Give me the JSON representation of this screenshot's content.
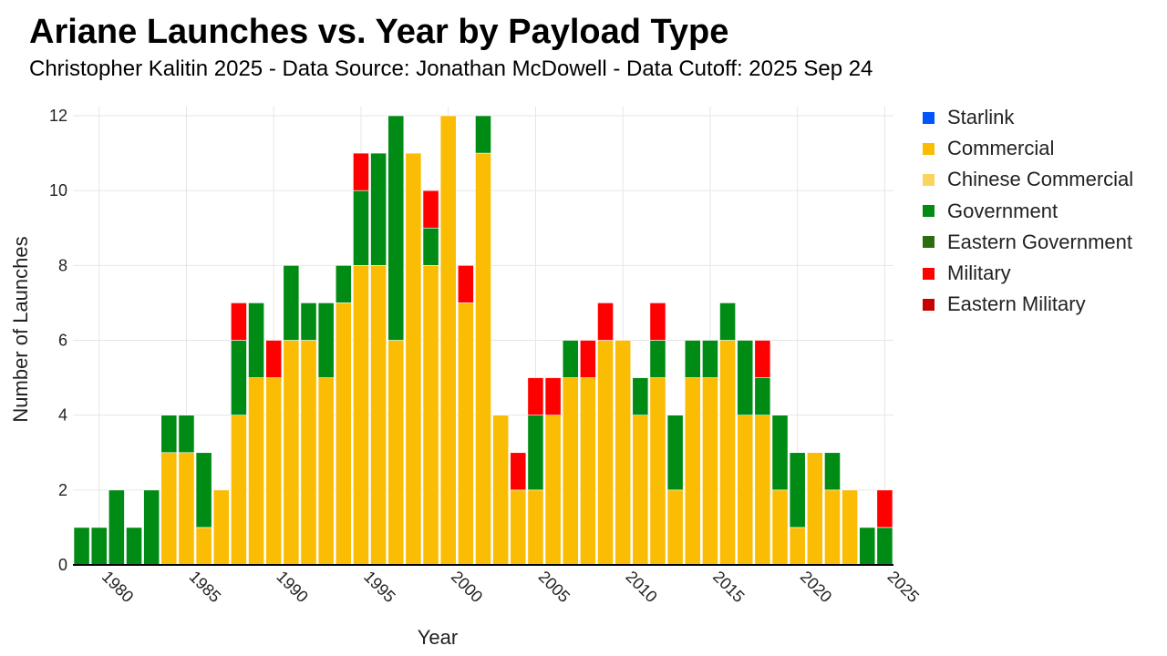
{
  "chart_data": {
    "type": "bar",
    "stacked": true,
    "title": "Ariane Launches vs. Year by Payload Type",
    "subtitle": "Christopher Kalitin 2025 - Data Source: Jonathan McDowell - Data Cutoff: 2025 Sep 24",
    "xlabel": "Year",
    "ylabel": "Number of Launches",
    "ylim": [
      0,
      12.2
    ],
    "yticks": [
      "0",
      "2",
      "4",
      "6",
      "8",
      "10",
      "12"
    ],
    "xticks": [
      "1980",
      "1985",
      "1990",
      "1995",
      "2000",
      "2005",
      "2010",
      "2015",
      "2020",
      "2025"
    ],
    "grid": true,
    "legend_position": "right",
    "x": [
      1979,
      1980,
      1981,
      1982,
      1983,
      1984,
      1985,
      1986,
      1987,
      1988,
      1989,
      1990,
      1991,
      1992,
      1993,
      1994,
      1995,
      1996,
      1997,
      1998,
      1999,
      2000,
      2001,
      2002,
      2003,
      2004,
      2005,
      2006,
      2007,
      2008,
      2009,
      2010,
      2011,
      2012,
      2013,
      2014,
      2015,
      2016,
      2017,
      2018,
      2019,
      2020,
      2021,
      2022,
      2023,
      2024,
      2025
    ],
    "series": [
      {
        "name": "Starlink",
        "color": "#0055FF",
        "values": [
          0,
          0,
          0,
          0,
          0,
          0,
          0,
          0,
          0,
          0,
          0,
          0,
          0,
          0,
          0,
          0,
          0,
          0,
          0,
          0,
          0,
          0,
          0,
          0,
          0,
          0,
          0,
          0,
          0,
          0,
          0,
          0,
          0,
          0,
          0,
          0,
          0,
          0,
          0,
          0,
          0,
          0,
          0,
          0,
          0,
          0,
          0
        ]
      },
      {
        "name": "Commercial",
        "color": "#FBBC04",
        "values": [
          0,
          0,
          0,
          0,
          0,
          3,
          3,
          1,
          2,
          4,
          5,
          5,
          6,
          6,
          5,
          7,
          8,
          8,
          6,
          11,
          8,
          12,
          7,
          11,
          4,
          2,
          2,
          4,
          5,
          5,
          6,
          6,
          4,
          5,
          2,
          5,
          5,
          6,
          4,
          4,
          2,
          1,
          3,
          2,
          2,
          0,
          0
        ]
      },
      {
        "name": "Chinese Commercial",
        "color": "#F9D55E",
        "values": [
          0,
          0,
          0,
          0,
          0,
          0,
          0,
          0,
          0,
          0,
          0,
          0,
          0,
          0,
          0,
          0,
          0,
          0,
          0,
          0,
          0,
          0,
          0,
          0,
          0,
          0,
          0,
          0,
          0,
          0,
          0,
          0,
          0,
          0,
          0,
          0,
          0,
          0,
          0,
          0,
          0,
          0,
          0,
          0,
          0,
          0,
          0
        ]
      },
      {
        "name": "Government",
        "color": "#008B14",
        "values": [
          1,
          1,
          2,
          1,
          2,
          1,
          1,
          2,
          0,
          2,
          2,
          0,
          2,
          1,
          2,
          1,
          2,
          3,
          6,
          0,
          1,
          0,
          0,
          1,
          0,
          0,
          2,
          0,
          1,
          0,
          0,
          0,
          1,
          1,
          2,
          1,
          1,
          1,
          2,
          1,
          2,
          2,
          0,
          1,
          0,
          1,
          1
        ]
      },
      {
        "name": "Eastern Government",
        "color": "#2C6E0F",
        "values": [
          0,
          0,
          0,
          0,
          0,
          0,
          0,
          0,
          0,
          0,
          0,
          0,
          0,
          0,
          0,
          0,
          0,
          0,
          0,
          0,
          0,
          0,
          0,
          0,
          0,
          0,
          0,
          0,
          0,
          0,
          0,
          0,
          0,
          0,
          0,
          0,
          0,
          0,
          0,
          0,
          0,
          0,
          0,
          0,
          0,
          0,
          0
        ]
      },
      {
        "name": "Military",
        "color": "#FF0000",
        "values": [
          0,
          0,
          0,
          0,
          0,
          0,
          0,
          0,
          0,
          1,
          0,
          1,
          0,
          0,
          0,
          0,
          1,
          0,
          0,
          0,
          1,
          0,
          1,
          0,
          0,
          1,
          1,
          1,
          0,
          1,
          1,
          0,
          0,
          1,
          0,
          0,
          0,
          0,
          0,
          1,
          0,
          0,
          0,
          0,
          0,
          0,
          1
        ]
      },
      {
        "name": "Eastern Military",
        "color": "#C80000",
        "values": [
          0,
          0,
          0,
          0,
          0,
          0,
          0,
          0,
          0,
          0,
          0,
          0,
          0,
          0,
          0,
          0,
          0,
          0,
          0,
          0,
          0,
          0,
          0,
          0,
          0,
          0,
          0,
          0,
          0,
          0,
          0,
          0,
          0,
          0,
          0,
          0,
          0,
          0,
          0,
          0,
          0,
          0,
          0,
          0,
          0,
          0,
          0
        ]
      }
    ]
  }
}
